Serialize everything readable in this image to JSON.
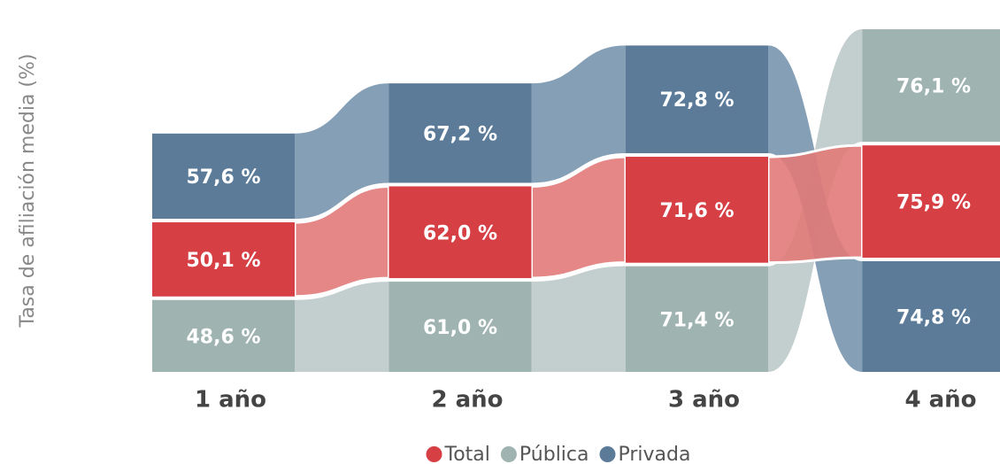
{
  "chart_data": {
    "type": "ribbon",
    "y_axis_label": "Tasa de afiliación media (%)",
    "categories": [
      "1 año",
      "2 año",
      "3 año",
      "4 año"
    ],
    "series": [
      {
        "name": "Total",
        "color": "#d64045",
        "ribbon_color": "#e27a79",
        "values": [
          50.1,
          62.0,
          71.6,
          75.9
        ],
        "value_labels": [
          "50,1 %",
          "62,0 %",
          "71,6 %",
          "75,9 %"
        ]
      },
      {
        "name": "Pública",
        "color": "#9fb3b1",
        "ribbon_color": "#bccac9",
        "values": [
          48.6,
          61.0,
          71.4,
          76.1
        ],
        "value_labels": [
          "48,6 %",
          "61,0 %",
          "71,4 %",
          "76,1 %"
        ]
      },
      {
        "name": "Privada",
        "color": "#5b7b99",
        "ribbon_color": "#7895ae",
        "values": [
          57.6,
          67.2,
          72.8,
          74.8
        ],
        "value_labels": [
          "57,6 %",
          "67,2 %",
          "72,8 %",
          "74,8 %"
        ]
      }
    ]
  }
}
